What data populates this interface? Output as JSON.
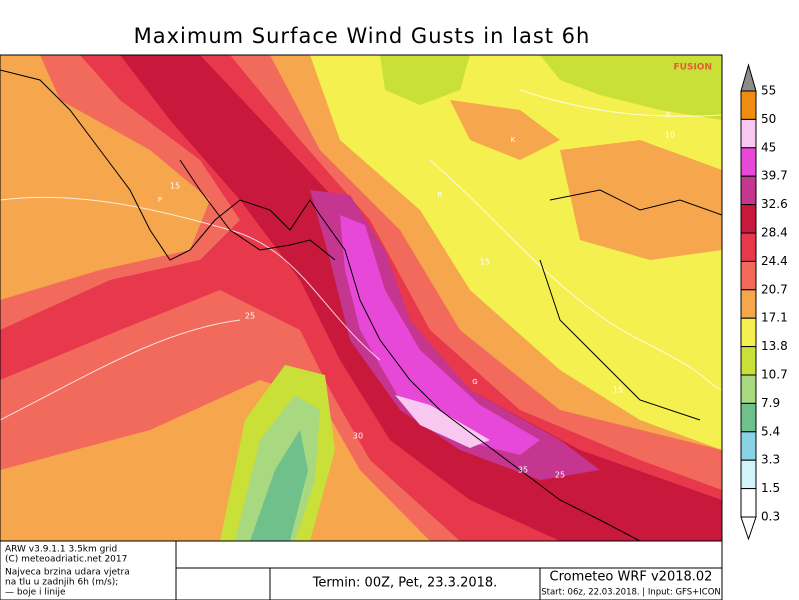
{
  "title": "Maximum Surface Wind Gusts in last 6h",
  "watermark": "FUSION",
  "legend": {
    "levels": [
      {
        "value": 55,
        "color": "#8c8c8c"
      },
      {
        "value": 50,
        "color": "#f08c10"
      },
      {
        "value": 45,
        "color": "#f8c8f0"
      },
      {
        "value": 39.7,
        "color": "#e848d8"
      },
      {
        "value": 32.6,
        "color": "#c43690"
      },
      {
        "value": 28.4,
        "color": "#c8183c"
      },
      {
        "value": 24.4,
        "color": "#e8384c"
      },
      {
        "value": 20.7,
        "color": "#f26a5c"
      },
      {
        "value": 17.1,
        "color": "#f6a64c"
      },
      {
        "value": 13.8,
        "color": "#f4f050"
      },
      {
        "value": 10.7,
        "color": "#c8e038"
      },
      {
        "value": 7.9,
        "color": "#a8d880"
      },
      {
        "value": 5.4,
        "color": "#70c08c"
      },
      {
        "value": 3.3,
        "color": "#88d4e4"
      },
      {
        "value": 1.5,
        "color": "#d0f4fa"
      },
      {
        "value": 0.3,
        "color": "#ffffff"
      }
    ]
  },
  "contour_labels": [
    "15",
    "15",
    "25",
    "30",
    "35",
    "25",
    "10",
    "15"
  ],
  "place_labels": [
    "K",
    "S",
    "G",
    "P",
    "R"
  ],
  "footer": {
    "model_lines": [
      "ARW v3.9.1.1 3.5km grid",
      "(C) meteoadriatic.net 2017"
    ],
    "description_lines": [
      "Najveca brzina udara vjetra",
      "na tlu u zadnjih 6h (m/s);",
      "— boje i linije"
    ],
    "termin": "Termin: 00Z, Pet, 23.3.2018.",
    "brand": "Crometeo WRF v2018.02",
    "start": "Start: 06z, 22.03.2018. | Input: GFS+ICON"
  }
}
